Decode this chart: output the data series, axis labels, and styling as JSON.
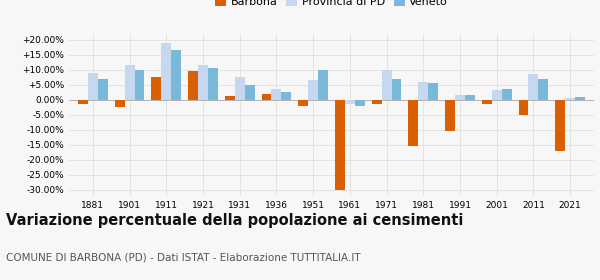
{
  "years": [
    1881,
    1901,
    1911,
    1921,
    1931,
    1936,
    1951,
    1961,
    1971,
    1981,
    1991,
    2001,
    2011,
    2021
  ],
  "barbona": [
    -1.5,
    -2.5,
    7.5,
    9.5,
    1.2,
    1.8,
    -2.0,
    -30.0,
    -1.5,
    -15.5,
    -10.5,
    -1.5,
    -5.2,
    -17.0
  ],
  "provincia_pd": [
    9.0,
    11.5,
    19.0,
    11.5,
    7.5,
    3.5,
    6.5,
    -1.5,
    10.0,
    6.0,
    1.5,
    3.2,
    8.5,
    0.5
  ],
  "veneto": [
    7.0,
    10.0,
    16.5,
    10.5,
    5.0,
    2.5,
    10.0,
    -2.0,
    7.0,
    5.5,
    1.5,
    3.5,
    7.0,
    1.0
  ],
  "barbona_color": "#d95f02",
  "provincia_color": "#c5d8f0",
  "veneto_color": "#7ab8d9",
  "title": "Variazione percentuale della popolazione ai censimenti",
  "subtitle": "COMUNE DI BARBONA (PD) - Dati ISTAT - Elaborazione TUTTITALIA.IT",
  "legend_labels": [
    "Barbona",
    "Provincia di PD",
    "Veneto"
  ],
  "ylim": [
    -32,
    22
  ],
  "yticks": [
    -30,
    -25,
    -20,
    -15,
    -10,
    -5,
    0,
    5,
    10,
    15,
    20
  ],
  "background_color": "#f7f7f7",
  "grid_color": "#e0e0e0",
  "title_fontsize": 10.5,
  "subtitle_fontsize": 7.5
}
